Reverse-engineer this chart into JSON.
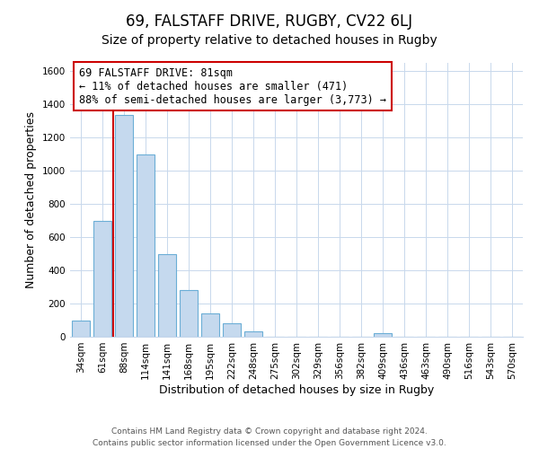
{
  "title": "69, FALSTAFF DRIVE, RUGBY, CV22 6LJ",
  "subtitle": "Size of property relative to detached houses in Rugby",
  "xlabel": "Distribution of detached houses by size in Rugby",
  "ylabel": "Number of detached properties",
  "bar_labels": [
    "34sqm",
    "61sqm",
    "88sqm",
    "114sqm",
    "141sqm",
    "168sqm",
    "195sqm",
    "222sqm",
    "248sqm",
    "275sqm",
    "302sqm",
    "329sqm",
    "356sqm",
    "382sqm",
    "409sqm",
    "436sqm",
    "463sqm",
    "490sqm",
    "516sqm",
    "543sqm",
    "570sqm"
  ],
  "bar_values": [
    100,
    700,
    1335,
    1100,
    500,
    280,
    140,
    80,
    30,
    0,
    0,
    0,
    0,
    0,
    20,
    0,
    0,
    0,
    0,
    0,
    0
  ],
  "bar_fill_color": "#c5d9ee",
  "bar_edge_color": "#6baed6",
  "vline_color": "#cc0000",
  "annotation_line1": "69 FALSTAFF DRIVE: 81sqm",
  "annotation_line2": "← 11% of detached houses are smaller (471)",
  "annotation_line3": "88% of semi-detached houses are larger (3,773) →",
  "annotation_box_facecolor": "#ffffff",
  "annotation_box_edgecolor": "#cc0000",
  "ylim": [
    0,
    1650
  ],
  "yticks": [
    0,
    200,
    400,
    600,
    800,
    1000,
    1200,
    1400,
    1600
  ],
  "footer_line1": "Contains HM Land Registry data © Crown copyright and database right 2024.",
  "footer_line2": "Contains public sector information licensed under the Open Government Licence v3.0.",
  "bg_color": "#ffffff",
  "grid_color": "#c8d8ec",
  "title_fontsize": 12,
  "subtitle_fontsize": 10,
  "axis_label_fontsize": 9,
  "tick_fontsize": 7.5,
  "annotation_fontsize": 8.5,
  "footer_fontsize": 6.5
}
